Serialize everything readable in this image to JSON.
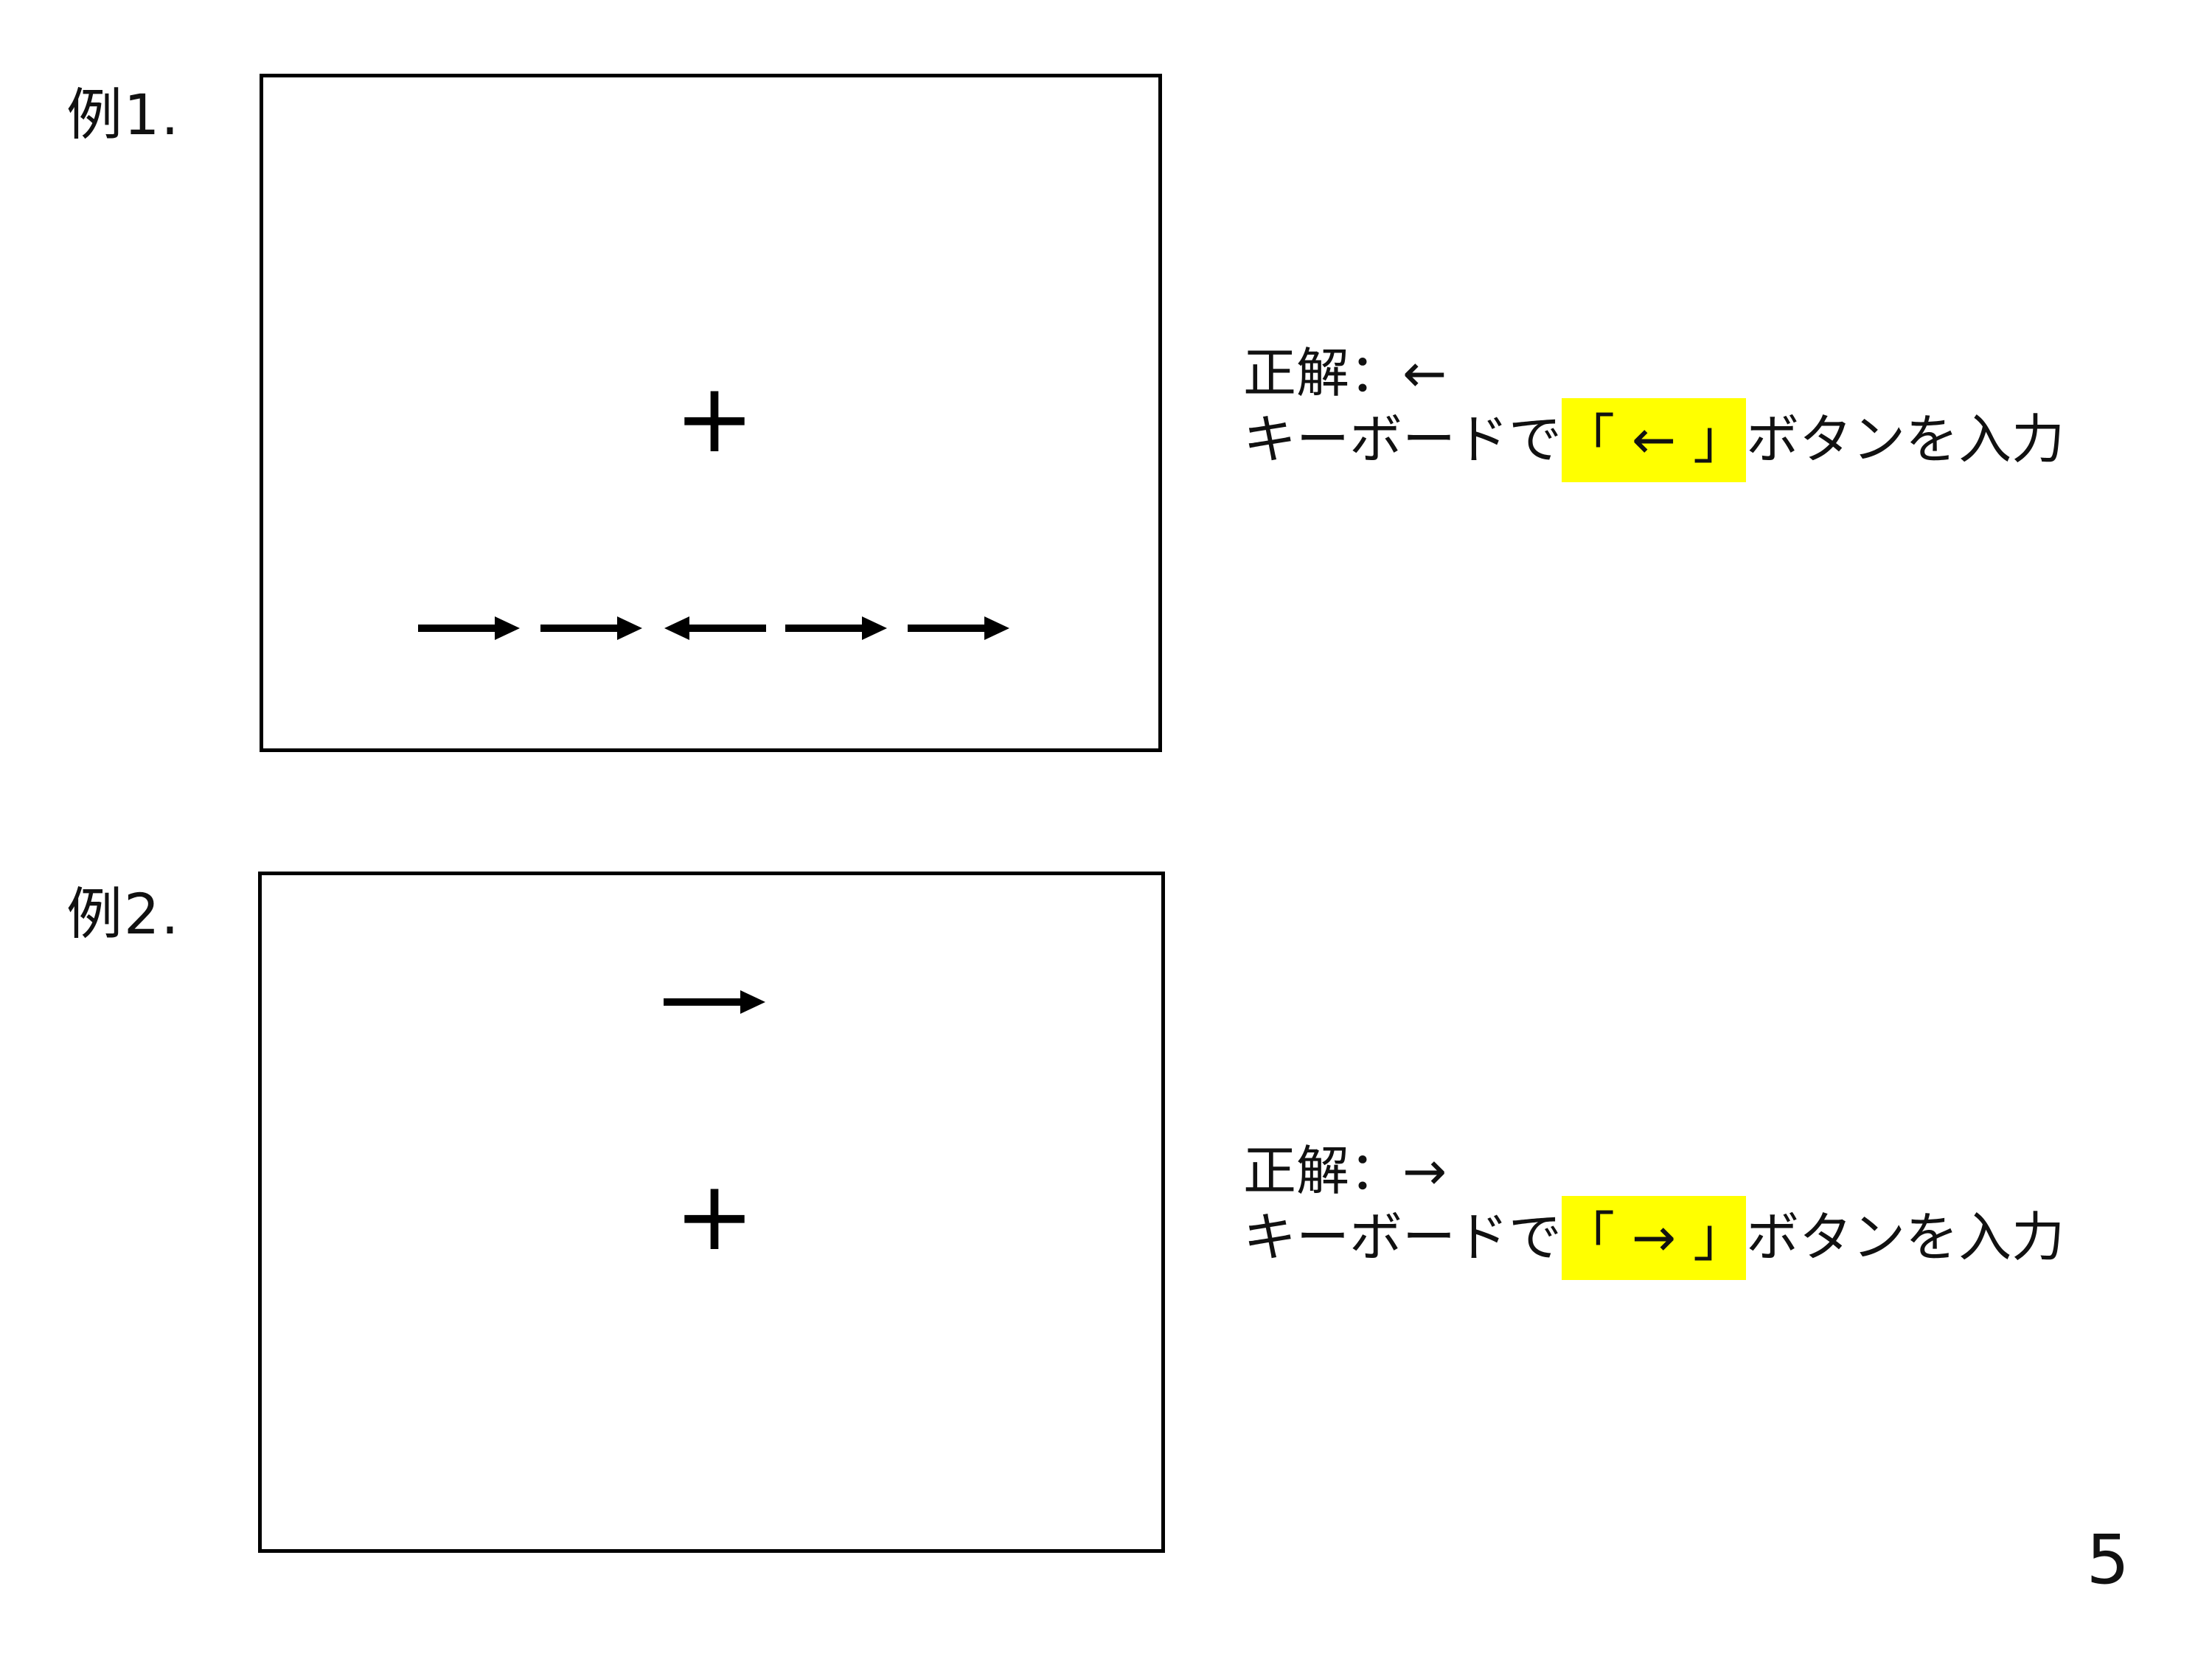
{
  "examples": [
    {
      "label": "例1.",
      "fixation": "+",
      "answer_line": "正解：←",
      "instruction_prefix": "キーボードで",
      "instruction_key": "「 ← 」",
      "instruction_suffix": "ボタンを入力"
    },
    {
      "label": "例2.",
      "fixation": "+",
      "answer_line": "正解：→",
      "instruction_prefix": "キーボードで",
      "instruction_key": "「 → 」",
      "instruction_suffix": "ボタンを入力"
    }
  ],
  "page_number": "5",
  "icons": [
    "right-arrow-icon",
    "left-arrow-icon"
  ],
  "colors": {
    "highlight": "#ffff00",
    "border": "#000000",
    "text": "#111111"
  }
}
